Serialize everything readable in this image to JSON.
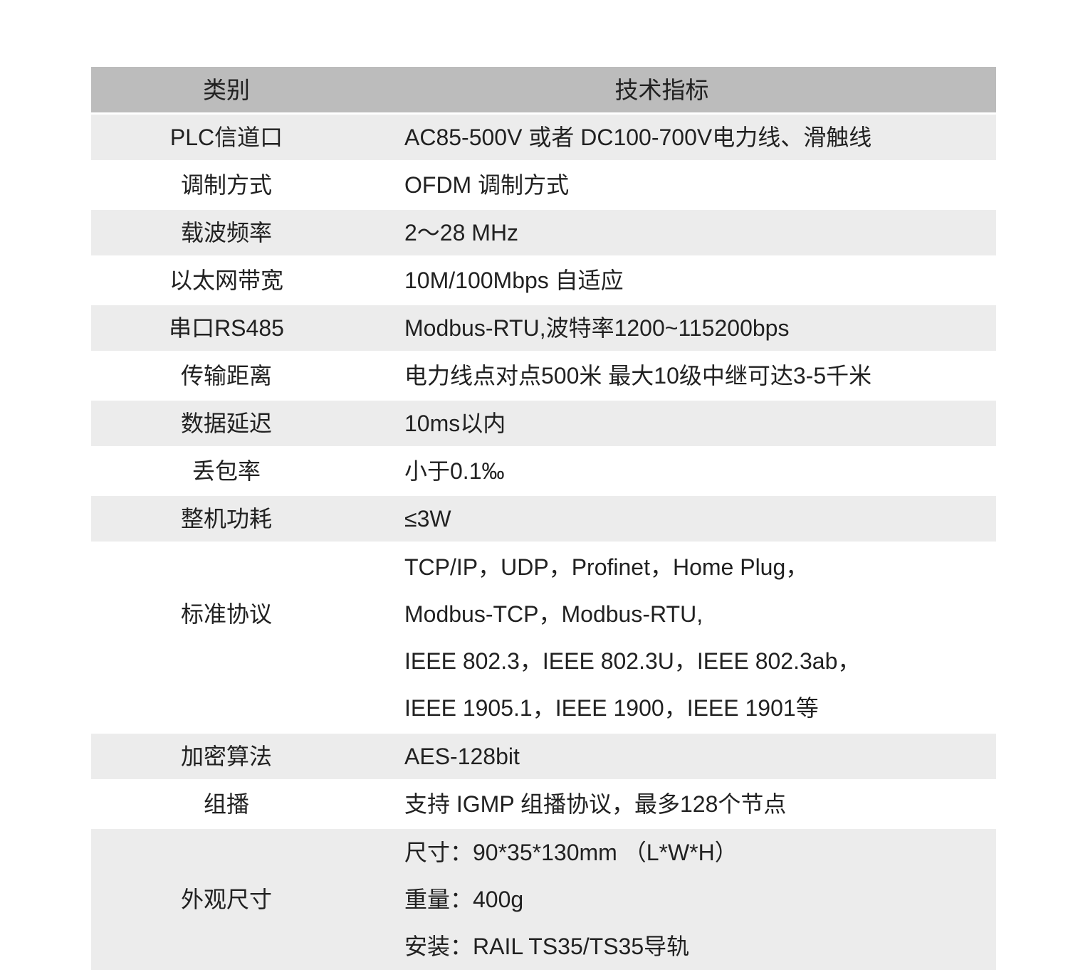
{
  "table": {
    "header": {
      "category": "类别",
      "spec": "技术指标"
    },
    "rows": [
      {
        "label": "PLC信道口",
        "lines": [
          "AC85-500V 或者 DC100-700V电力线、滑触线"
        ]
      },
      {
        "label": "调制方式",
        "lines": [
          "OFDM 调制方式"
        ]
      },
      {
        "label": "载波频率",
        "lines": [
          "2～28 MHz"
        ]
      },
      {
        "label": "以太网带宽",
        "lines": [
          "10M/100Mbps 自适应"
        ]
      },
      {
        "label": "串口RS485",
        "lines": [
          "Modbus-RTU,波特率1200~115200bps"
        ]
      },
      {
        "label": "传输距离",
        "lines": [
          "电力线点对点500米 最大10级中继可达3-5千米"
        ]
      },
      {
        "label": "数据延迟",
        "lines": [
          "10ms以内"
        ]
      },
      {
        "label": "丢包率",
        "lines": [
          "小于0.1‰"
        ]
      },
      {
        "label": "整机功耗",
        "lines": [
          "≤3W"
        ]
      },
      {
        "label": "标准协议",
        "lines": [
          "TCP/IP，UDP，Profinet，Home Plug，",
          "Modbus-TCP，Modbus-RTU,",
          "IEEE 802.3，IEEE 802.3U，IEEE 802.3ab，",
          "IEEE 1905.1，IEEE 1900，IEEE 1901等"
        ]
      },
      {
        "label": "加密算法",
        "lines": [
          "AES-128bit"
        ]
      },
      {
        "label": "组播",
        "lines": [
          "支持 IGMP 组播协议，最多128个节点"
        ]
      },
      {
        "label": "外观尺寸",
        "lines": [
          "尺寸：90*35*130mm （L*W*H）",
          "重量：400g",
          "安装：RAIL TS35/TS35导轨"
        ]
      }
    ],
    "colors": {
      "header_bg": "#bcbcbc",
      "row_alt_bg": "#ececec",
      "row_bg": "#ffffff",
      "text": "#212121",
      "page_bg": "#ffffff"
    }
  }
}
